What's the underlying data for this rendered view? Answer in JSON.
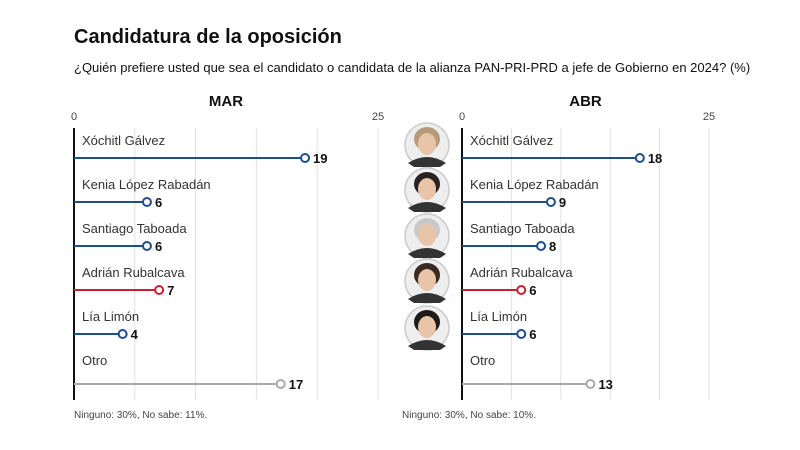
{
  "title": "Candidatura de la oposición",
  "subtitle": "¿Quién prefiere usted que sea el candidato o candidata de la alianza PAN-PRI-PRD a jefe de Gobierno en 2024? (%)",
  "chart_data": [
    {
      "type": "lollipop",
      "title": "MAR",
      "xlim": [
        0,
        25
      ],
      "ticks": [
        "0",
        "25"
      ],
      "categories": [
        "Xóchitl Gálvez",
        "Kenia López Rabadán",
        "Santiago Taboada",
        "Adrián Rubalcava",
        "Lía Limón",
        "Otro"
      ],
      "values": [
        19,
        6,
        6,
        7,
        4,
        17
      ],
      "colors": [
        "#1f4e8c",
        "#1f4e8c",
        "#1f4e8c",
        "#c8202f",
        "#1f4e8c",
        "#aaaaaa"
      ],
      "note": "Ninguno: 30%, No sabe: 11%."
    },
    {
      "type": "lollipop",
      "title": "ABR",
      "xlim": [
        0,
        25
      ],
      "ticks": [
        "0",
        "25"
      ],
      "categories": [
        "Xóchitl Gálvez",
        "Kenia López Rabadán",
        "Santiago Taboada",
        "Adrián Rubalcava",
        "Lía Limón",
        "Otro"
      ],
      "values": [
        18,
        9,
        8,
        6,
        6,
        13
      ],
      "colors": [
        "#1f4e8c",
        "#1f4e8c",
        "#1f4e8c",
        "#c8202f",
        "#1f4e8c",
        "#aaaaaa"
      ],
      "note": "Ninguno: 30%, No sabe: 10%."
    }
  ]
}
